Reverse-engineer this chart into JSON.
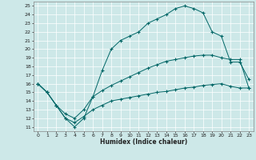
{
  "xlabel": "Humidex (Indice chaleur)",
  "bg_color": "#cde8e8",
  "line_color": "#006666",
  "grid_color": "#ffffff",
  "xlim": [
    -0.5,
    23.5
  ],
  "ylim": [
    10.5,
    25.5
  ],
  "yticks": [
    11,
    12,
    13,
    14,
    15,
    16,
    17,
    18,
    19,
    20,
    21,
    22,
    23,
    24,
    25
  ],
  "xticks": [
    0,
    1,
    2,
    3,
    4,
    5,
    6,
    7,
    8,
    9,
    10,
    11,
    12,
    13,
    14,
    15,
    16,
    17,
    18,
    19,
    20,
    21,
    22,
    23
  ],
  "line1_x": [
    0,
    1,
    2,
    3,
    4,
    5,
    6,
    7,
    8,
    9,
    10,
    11,
    12,
    13,
    14,
    15,
    16,
    17,
    18,
    19,
    20,
    21,
    22,
    23
  ],
  "line1_y": [
    16,
    15,
    13.5,
    12,
    11,
    12,
    14.5,
    17.5,
    20,
    21,
    21.5,
    22,
    23,
    23.5,
    24,
    24.7,
    25.0,
    24.7,
    24.2,
    22,
    21.5,
    18.5,
    18.5,
    16.5
  ],
  "line2_x": [
    0,
    1,
    2,
    3,
    4,
    5,
    6,
    7,
    8,
    9,
    10,
    11,
    12,
    13,
    14,
    15,
    16,
    17,
    18,
    19,
    20,
    21,
    22,
    23
  ],
  "line2_y": [
    16,
    15,
    13.5,
    12.5,
    12,
    13,
    14.5,
    15.2,
    15.8,
    16.3,
    16.8,
    17.3,
    17.8,
    18.2,
    18.6,
    18.8,
    19.0,
    19.2,
    19.3,
    19.3,
    19.0,
    18.8,
    18.8,
    15.5
  ],
  "line3_x": [
    0,
    1,
    2,
    3,
    4,
    5,
    6,
    7,
    8,
    9,
    10,
    11,
    12,
    13,
    14,
    15,
    16,
    17,
    18,
    19,
    20,
    21,
    22,
    23
  ],
  "line3_y": [
    16,
    15,
    13.5,
    12,
    11.5,
    12.2,
    13.0,
    13.5,
    14.0,
    14.2,
    14.4,
    14.6,
    14.8,
    15.0,
    15.1,
    15.3,
    15.5,
    15.6,
    15.8,
    15.9,
    16.0,
    15.7,
    15.5,
    15.5
  ]
}
